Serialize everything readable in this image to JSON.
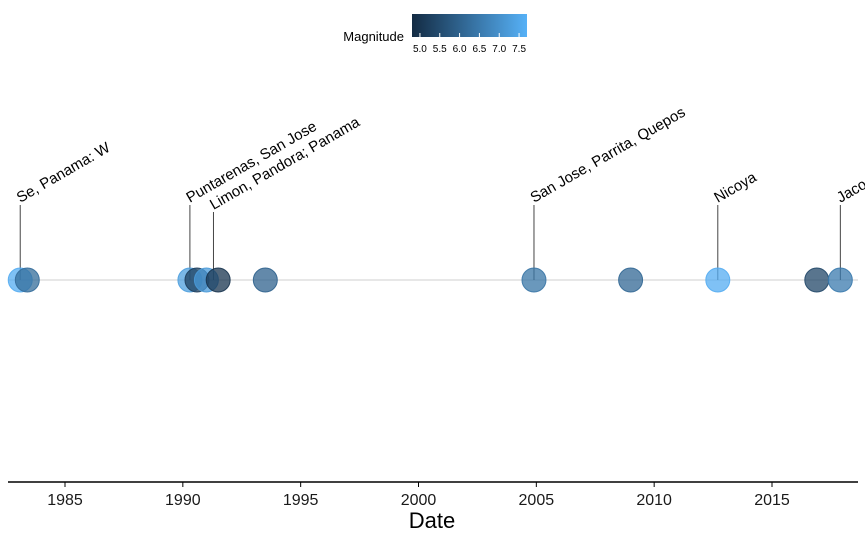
{
  "chart_data": {
    "type": "scatter",
    "title": "",
    "xlabel": "Date",
    "ylabel": "",
    "xlim": [
      1982.5,
      2018.8
    ],
    "x_ticks": [
      1985,
      1990,
      1995,
      2000,
      2005,
      2010,
      2015
    ],
    "grid": false,
    "legend": {
      "title": "Magnitude",
      "placement": "top-center",
      "ticks": [
        "5.0",
        "5.5",
        "6.0",
        "6.5",
        "7.0",
        "7.5"
      ],
      "range": [
        4.8,
        7.7
      ],
      "color_low": "#132B43",
      "color_high": "#56B1F7"
    },
    "points": [
      {
        "x": 1983.1,
        "magnitude": 7.6
      },
      {
        "x": 1983.4,
        "magnitude": 6.2
      },
      {
        "x": 1990.3,
        "magnitude": 7.3
      },
      {
        "x": 1990.6,
        "magnitude": 5.2
      },
      {
        "x": 1991.0,
        "magnitude": 7.2
      },
      {
        "x": 1991.5,
        "magnitude": 5.0
      },
      {
        "x": 1993.5,
        "magnitude": 6.0
      },
      {
        "x": 2004.9,
        "magnitude": 6.4
      },
      {
        "x": 2009.0,
        "magnitude": 6.1
      },
      {
        "x": 2012.7,
        "magnitude": 7.6
      },
      {
        "x": 2016.9,
        "magnitude": 5.4
      },
      {
        "x": 2017.9,
        "magnitude": 6.5
      }
    ],
    "labels": [
      {
        "x": 1983.1,
        "text": "Se, Panama: W",
        "stem": 75
      },
      {
        "x": 1990.3,
        "text": "Puntarenas, San Jose",
        "stem": 75
      },
      {
        "x": 1991.3,
        "text": "Limon, Pandora; Panama",
        "stem": 68
      },
      {
        "x": 2004.9,
        "text": "San Jose, Parrita, Quepos",
        "stem": 75
      },
      {
        "x": 2012.7,
        "text": "Nicoya",
        "stem": 75
      },
      {
        "x": 2017.9,
        "text": "Jaco",
        "stem": 75
      }
    ]
  }
}
